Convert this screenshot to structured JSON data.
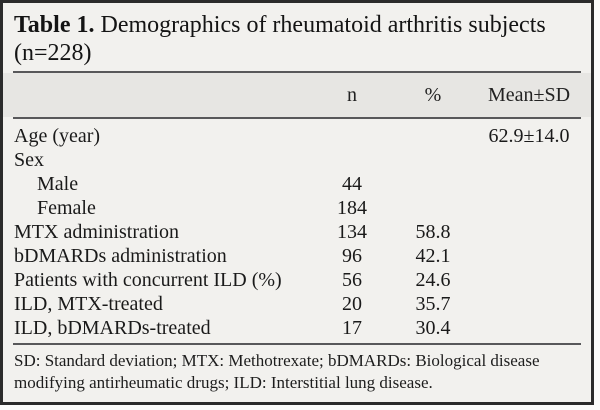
{
  "table": {
    "title_bold": "Table 1.",
    "title_rest": " Demographics of rheumatoid arthritis subjects (n=228)",
    "columns": [
      "",
      "n",
      "%",
      "Mean±SD"
    ],
    "rows": [
      {
        "label": "Age (year)",
        "indent": false,
        "n": "",
        "pct": "",
        "mean": "62.9±14.0"
      },
      {
        "label": "Sex",
        "indent": false,
        "n": "",
        "pct": "",
        "mean": ""
      },
      {
        "label": "Male",
        "indent": true,
        "n": "44",
        "pct": "",
        "mean": ""
      },
      {
        "label": "Female",
        "indent": true,
        "n": "184",
        "pct": "",
        "mean": ""
      },
      {
        "label": "MTX administration",
        "indent": false,
        "n": "134",
        "pct": "58.8",
        "mean": ""
      },
      {
        "label": "bDMARDs administration",
        "indent": false,
        "n": "96",
        "pct": "42.1",
        "mean": ""
      },
      {
        "label": "Patients with concurrent ILD (%)",
        "indent": false,
        "n": "56",
        "pct": "24.6",
        "mean": ""
      },
      {
        "label": "ILD, MTX-treated",
        "indent": false,
        "n": "20",
        "pct": "35.7",
        "mean": ""
      },
      {
        "label": "ILD, bDMARDs-treated",
        "indent": false,
        "n": "17",
        "pct": "30.4",
        "mean": ""
      }
    ],
    "footnote": "SD: Standard deviation; MTX: Methotrexate; bDMARDs: Biological disease modifying antirheumatic drugs; ILD: Interstitial lung disease."
  },
  "colors": {
    "page_background": "#f2f1ee",
    "header_band": "#e7e6e3",
    "rule": "#58585a",
    "frame_border": "#2b2b2b",
    "text": "#1a1a1a"
  }
}
